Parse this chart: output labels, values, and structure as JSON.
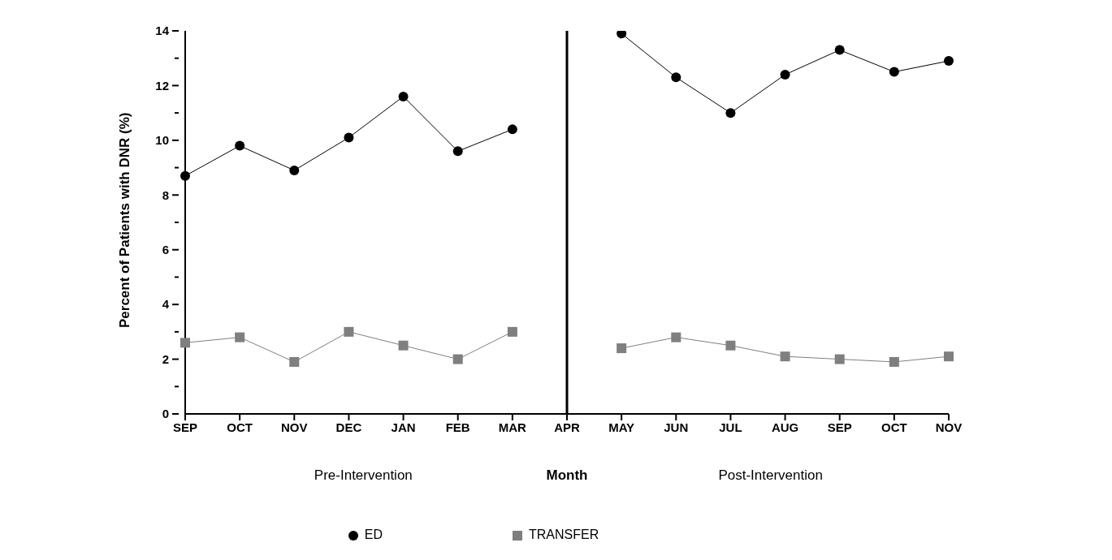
{
  "chart_data": {
    "type": "line",
    "xlabel": "Month",
    "ylabel": "Percent of Patients with DNR (%)",
    "categories": [
      "SEP",
      "OCT",
      "NOV",
      "DEC",
      "JAN",
      "FEB",
      "MAR",
      "APR",
      "MAY",
      "JUN",
      "JUL",
      "AUG",
      "SEP",
      "OCT",
      "NOV"
    ],
    "series": [
      {
        "name": "ED",
        "color": "#000000",
        "marker": "circle",
        "values": [
          8.7,
          9.8,
          8.9,
          10.1,
          11.6,
          9.6,
          10.4,
          null,
          13.9,
          12.3,
          11.0,
          12.4,
          13.3,
          12.5,
          12.9
        ]
      },
      {
        "name": "TRANSFER",
        "color": "#7f7f7f",
        "marker": "square",
        "values": [
          2.6,
          2.8,
          1.9,
          3.0,
          2.5,
          2.0,
          3.0,
          null,
          2.4,
          2.8,
          2.5,
          2.1,
          2.0,
          1.9,
          2.1
        ]
      }
    ],
    "ylim": [
      0,
      14
    ],
    "yticks": [
      0,
      {
        "value": 1,
        "label": null
      },
      2,
      {
        "value": 3,
        "label": null
      },
      4,
      {
        "value": 5,
        "label": null
      },
      6,
      {
        "value": 7,
        "label": null
      },
      8,
      {
        "value": 9,
        "label": null
      },
      10,
      {
        "value": 11,
        "label": null
      },
      12,
      {
        "value": 13,
        "label": null
      },
      14
    ],
    "ref_lines": [
      {
        "axis": "x",
        "value": "APR",
        "color": "#000000"
      }
    ],
    "annotations": [
      "Pre-Intervention",
      "Post-Intervention"
    ],
    "grid": false,
    "legend": "bottom",
    "line_style": "solid"
  }
}
